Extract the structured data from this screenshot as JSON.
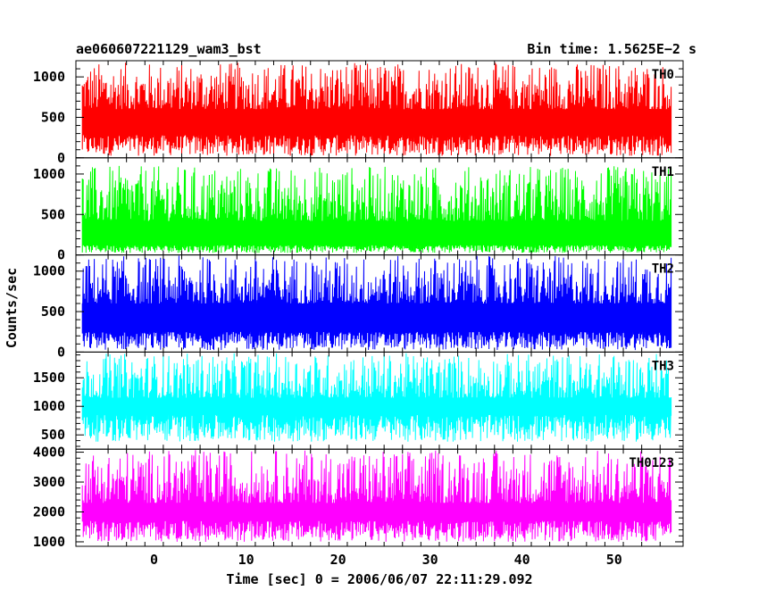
{
  "chart_data": {
    "type": "line",
    "title": "ae060607221129_wam3_bst",
    "bin_time": "Bin time: 1.5625E−2 s",
    "xlabel": "Time [sec] 0 = 2006/06/07 22:11:29.092",
    "ylabel": "Counts/sec",
    "xlim": [
      -8.5,
      57.5
    ],
    "data_range": [
      -7.8,
      56.2
    ],
    "x_ticks": [
      0,
      10,
      20,
      30,
      40,
      50
    ],
    "panels": [
      {
        "name": "TH0",
        "color": "#ff0000",
        "ylim": [
          0,
          1200
        ],
        "y_ticks": [
          0,
          500,
          1000
        ],
        "baseline": 280,
        "level": 600,
        "peak": 1180,
        "floor": 25
      },
      {
        "name": "TH1",
        "color": "#00ff00",
        "ylim": [
          0,
          1200
        ],
        "y_ticks": [
          0,
          500,
          1000
        ],
        "baseline": 120,
        "level": 420,
        "peak": 1100,
        "floor": 25
      },
      {
        "name": "TH2",
        "color": "#0000ff",
        "ylim": [
          0,
          1200
        ],
        "y_ticks": [
          0,
          500,
          1000
        ],
        "baseline": 250,
        "level": 600,
        "peak": 1190,
        "floor": 25
      },
      {
        "name": "TH3",
        "color": "#00ffff",
        "ylim": [
          250,
          1950
        ],
        "y_ticks": [
          500,
          1000,
          1500
        ],
        "baseline": 850,
        "level": 1150,
        "peak": 1930,
        "floor": 380
      },
      {
        "name": "TH0123",
        "color": "#ff00ff",
        "ylim": [
          850,
          4100
        ],
        "y_ticks": [
          1000,
          2000,
          3000,
          4000
        ],
        "baseline": 1700,
        "level": 2300,
        "peak": 4080,
        "floor": 1000
      }
    ]
  }
}
